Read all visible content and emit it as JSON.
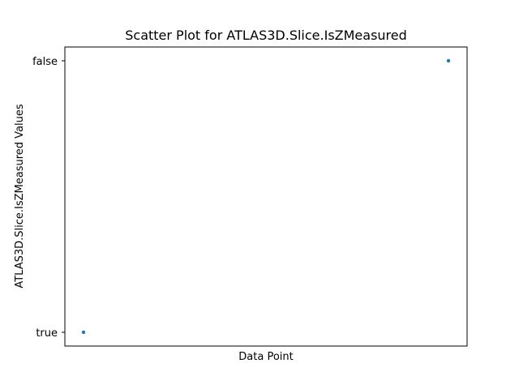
{
  "chart_data": {
    "type": "scatter",
    "title": "Scatter Plot for ATLAS3D.Slice.IsZMeasured",
    "xlabel": "Data Point",
    "ylabel": "ATLAS3D.Slice.IsZMeasured Values",
    "y_categories": [
      "true",
      "false"
    ],
    "points": [
      {
        "x": 0,
        "y": "true"
      },
      {
        "x": 1,
        "y": "false"
      }
    ],
    "x_ticks_visible": false,
    "grid": false,
    "legend": "none",
    "marker_color": "#1f77b4"
  }
}
